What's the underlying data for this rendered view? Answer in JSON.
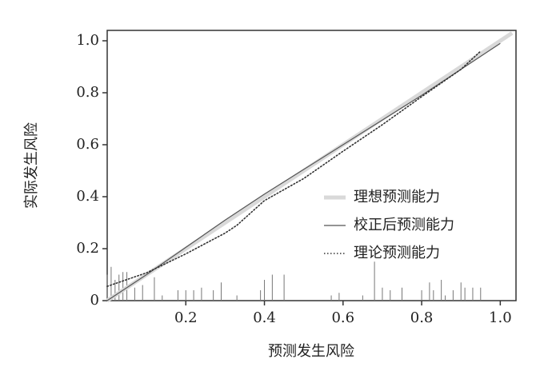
{
  "chart_data": {
    "type": "line",
    "xlabel": "预测发生风险",
    "ylabel": "实际发生风险",
    "xlim": [
      0,
      1.04
    ],
    "ylim": [
      0,
      1.04
    ],
    "xticks": [
      0.2,
      0.4,
      0.6,
      0.8,
      {
        "value": 1,
        "label": "1.0"
      }
    ],
    "yticks": [
      0,
      0.2,
      0.4,
      0.6,
      0.8,
      {
        "value": 1,
        "label": "1.0"
      }
    ],
    "legend": "right",
    "series": [
      {
        "name": "理想预测能力",
        "color": "#d9d9d9",
        "linestyle": "solid",
        "linewidth": 5,
        "x": [
          0,
          1.03
        ],
        "values": [
          0,
          1.03
        ]
      },
      {
        "name": "校正后预测能力",
        "color": "#555555",
        "linestyle": "solid",
        "linewidth": 1.2,
        "x": [
          0,
          0.1,
          0.2,
          0.3,
          0.4,
          0.5,
          0.6,
          0.7,
          0.8,
          0.9,
          1.0
        ],
        "values": [
          0,
          0.1,
          0.205,
          0.31,
          0.41,
          0.505,
          0.6,
          0.695,
          0.79,
          0.89,
          0.99
        ]
      },
      {
        "name": "理论预测能力",
        "color": "#333333",
        "linestyle": "dotted",
        "linewidth": 1.6,
        "x": [
          0,
          0.1,
          0.2,
          0.3,
          0.33,
          0.4,
          0.5,
          0.6,
          0.7,
          0.8,
          0.9,
          0.95
        ],
        "values": [
          0.055,
          0.107,
          0.18,
          0.26,
          0.29,
          0.385,
          0.47,
          0.575,
          0.677,
          0.785,
          0.89,
          0.96
        ]
      }
    ],
    "rug": {
      "color": "#777777",
      "x": [
        0.0,
        0.01,
        0.02,
        0.03,
        0.04,
        0.05,
        0.07,
        0.09,
        0.12,
        0.14,
        0.18,
        0.2,
        0.22,
        0.24,
        0.27,
        0.29,
        0.33,
        0.39,
        0.4,
        0.42,
        0.45,
        0.57,
        0.59,
        0.65,
        0.68,
        0.7,
        0.72,
        0.75,
        0.8,
        0.82,
        0.83,
        0.85,
        0.86,
        0.88,
        0.9,
        0.91,
        0.93,
        0.95
      ],
      "values": [
        0.1,
        0.13,
        0.08,
        0.1,
        0.11,
        0.11,
        0.05,
        0.06,
        0.09,
        0.02,
        0.04,
        0.04,
        0.04,
        0.05,
        0.04,
        0.07,
        0.02,
        0.04,
        0.08,
        0.1,
        0.1,
        0.02,
        0.03,
        0.02,
        0.15,
        0.05,
        0.04,
        0.05,
        0.04,
        0.07,
        0.04,
        0.08,
        0.02,
        0.04,
        0.07,
        0.05,
        0.05,
        0.05
      ]
    }
  }
}
